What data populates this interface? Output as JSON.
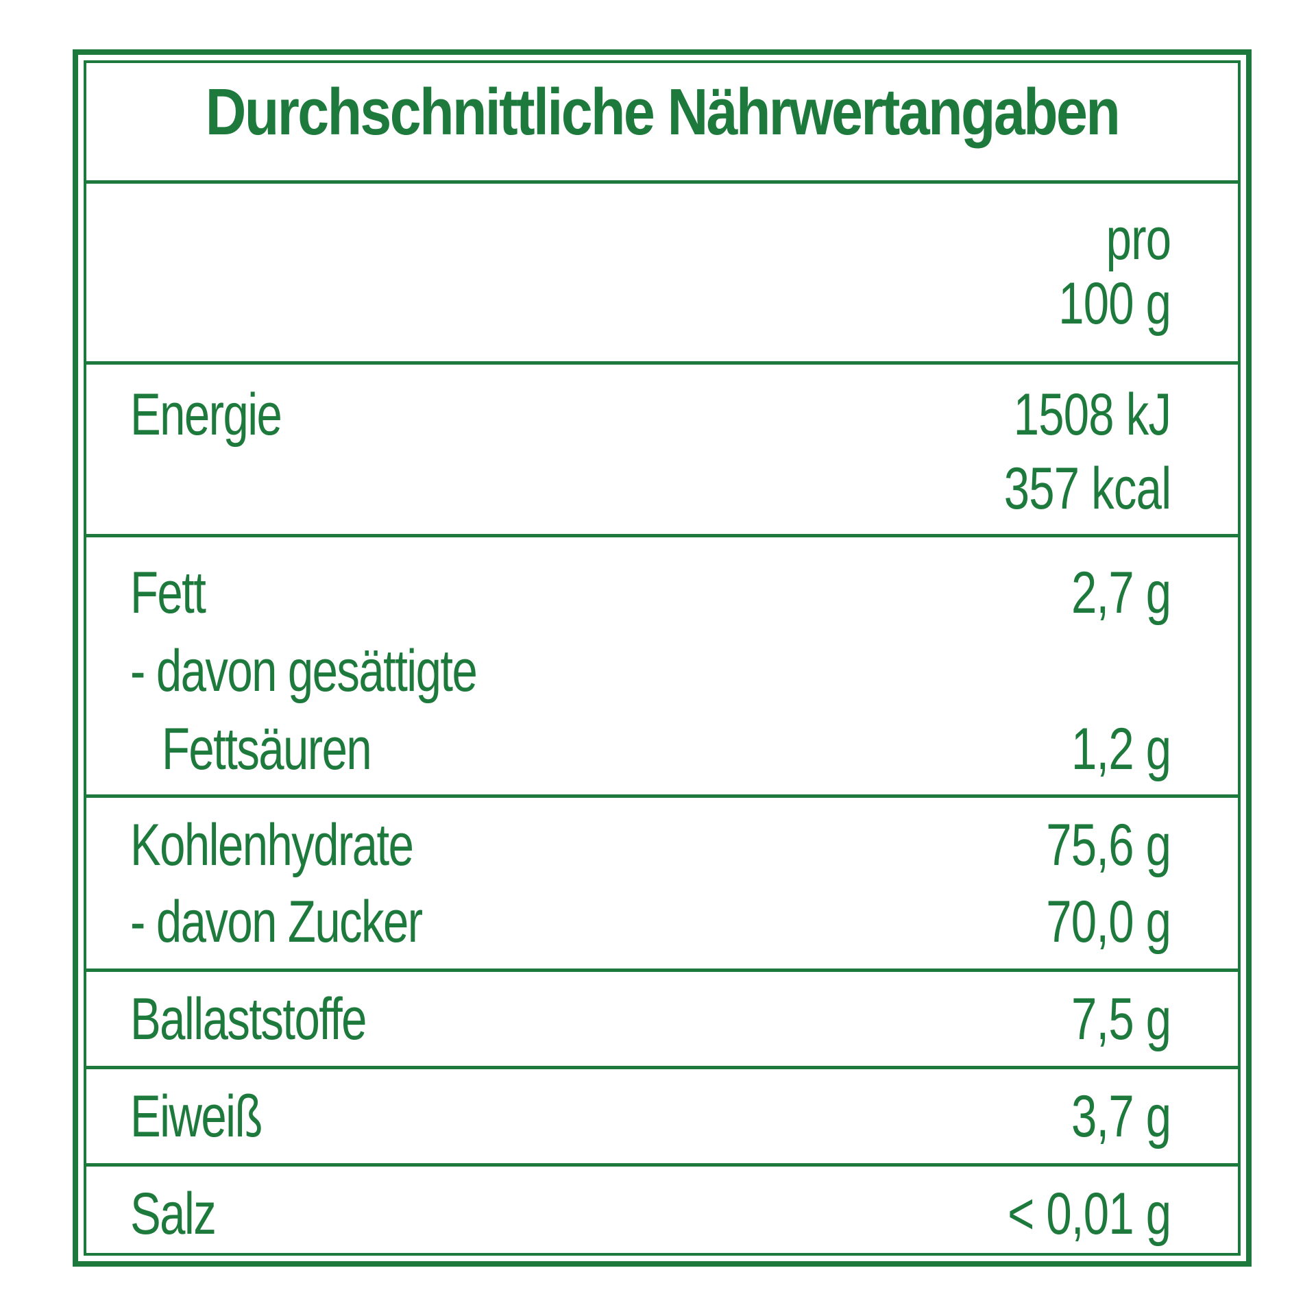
{
  "table": {
    "title": "Durchschnittliche Nährwertangaben",
    "header": {
      "line1": "pro",
      "line2": "100 g"
    },
    "energie": {
      "label": "Energie",
      "value_kj": "1508 kJ",
      "value_kcal": "357 kcal"
    },
    "fett": {
      "label": "Fett",
      "value": "2,7 g",
      "sub_label_line1": "- davon gesättigte",
      "sub_label_line2": "Fettsäuren",
      "sub_value": "1,2 g"
    },
    "kohlenhydrate": {
      "label": "Kohlenhydrate",
      "value": "75,6 g",
      "sub_label": "- davon Zucker",
      "sub_value": "70,0 g"
    },
    "ballaststoffe": {
      "label": "Ballaststoffe",
      "value": "7,5 g"
    },
    "eiweiss": {
      "label": "Eiweiß",
      "value": "3,7 g"
    },
    "salz": {
      "label": "Salz",
      "value": "< 0,01 g"
    }
  },
  "colors": {
    "accent": "#1e7a3c",
    "background": "#ffffff"
  }
}
